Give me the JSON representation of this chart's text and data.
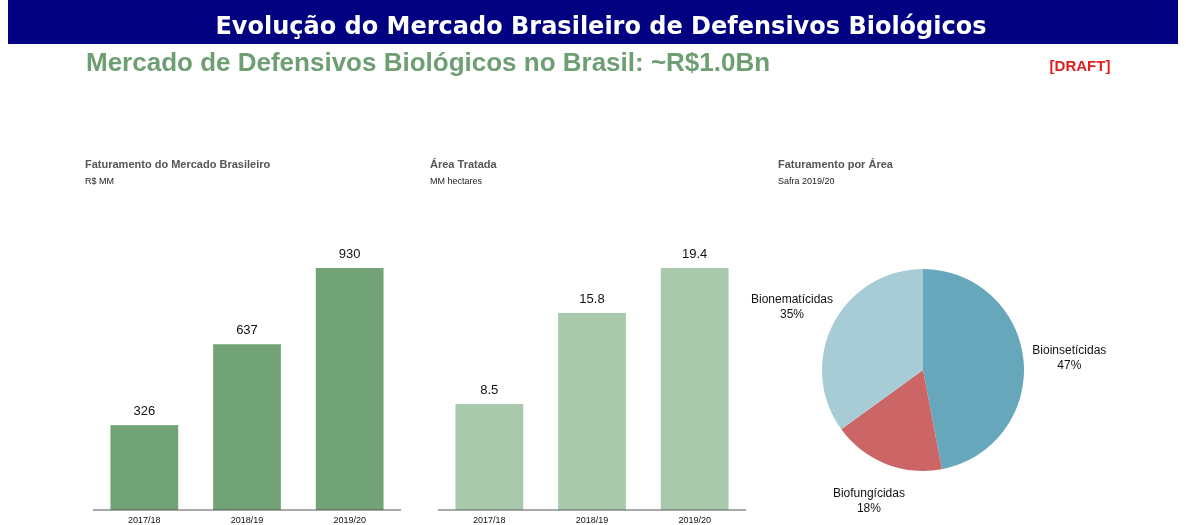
{
  "chart_data": [
    {
      "type": "other",
      "title": "Evolução do Mercado Brasileiro de Defensivos Biológicos",
      "subtitle": "Mercado de Defensivos Biológicos no Brasil: ~R$1.0Bn",
      "annotations": [
        "[DRAFT]"
      ]
    },
    {
      "type": "bar",
      "title": "Faturamento do Mercado Brasileiro",
      "subtitle": "R$ MM",
      "categories": [
        "2017/18",
        "2018/19",
        "2019/20"
      ],
      "values": [
        326,
        637,
        930
      ],
      "color": "#72a376",
      "data_labels": true
    },
    {
      "type": "bar",
      "title": "Área Tratada",
      "subtitle": "MM hectares",
      "categories": [
        "2017/18",
        "2018/19",
        "2019/20"
      ],
      "values": [
        8.5,
        15.8,
        19.4
      ],
      "color": "#a9c9ad",
      "data_labels": true
    },
    {
      "type": "pie",
      "title": "Faturamento por Área",
      "subtitle": "Safra 2019/20",
      "categories": [
        "Bioinsetícidas",
        "Biofungícidas",
        "Bionematícidas"
      ],
      "values": [
        47,
        18,
        35
      ],
      "value_labels": [
        "47%",
        "18%",
        "35%"
      ],
      "colors": [
        "#67a7bb",
        "#cc6666",
        "#a8ccd6"
      ]
    }
  ]
}
